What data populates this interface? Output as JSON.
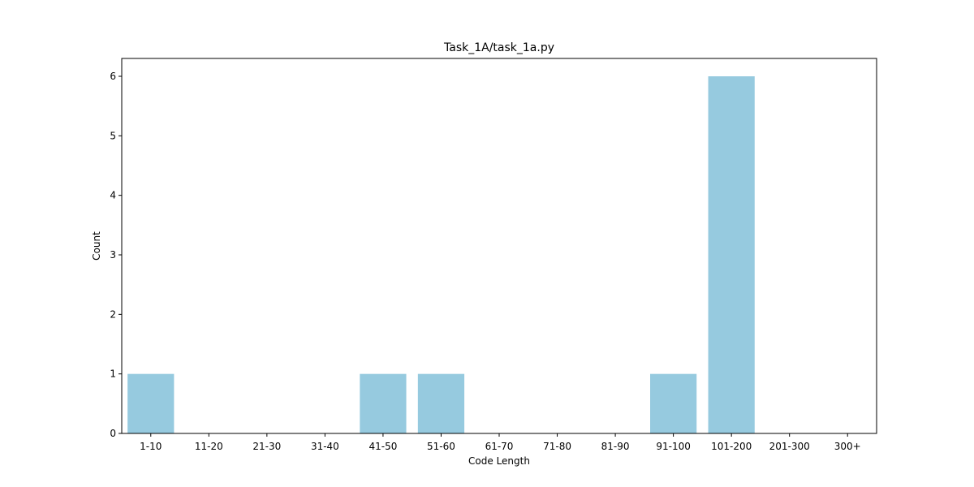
{
  "colors": {
    "bar": "#96cadf",
    "axis": "#000000",
    "background": "#ffffff"
  },
  "chart_data": {
    "type": "bar",
    "title": "Task_1A/task_1a.py",
    "xlabel": "Code Length",
    "ylabel": "Count",
    "categories": [
      "1-10",
      "11-20",
      "21-30",
      "31-40",
      "41-50",
      "51-60",
      "61-70",
      "71-80",
      "81-90",
      "91-100",
      "101-200",
      "201-300",
      "300+"
    ],
    "values": [
      1,
      0,
      0,
      0,
      1,
      1,
      0,
      0,
      0,
      1,
      6,
      0,
      0
    ],
    "ylim": [
      0,
      6.3
    ],
    "yticks": [
      0,
      1,
      2,
      3,
      4,
      5,
      6
    ],
    "grid": false,
    "legend": false
  }
}
